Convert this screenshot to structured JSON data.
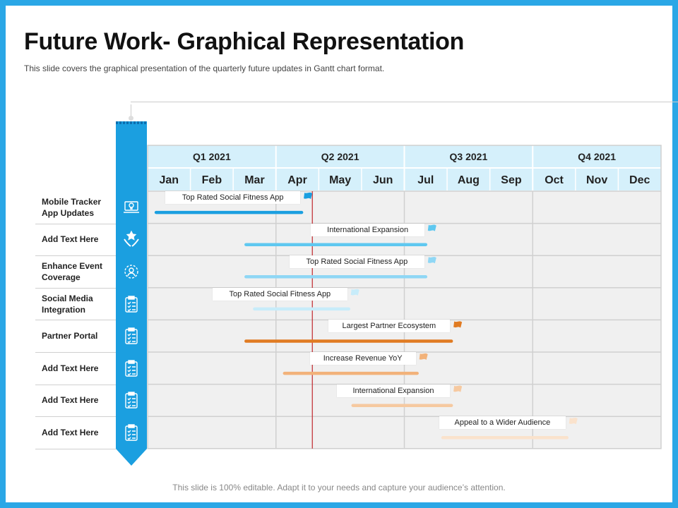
{
  "title": "Future Work- Graphical Representation",
  "subtitle": "This slide covers the graphical presentation of the quarterly future updates in Gantt chart format.",
  "footer": "This slide is 100% editable. Adapt it to your needs and capture your audience’s attention.",
  "colors": {
    "frame": "#2aa7e6",
    "strip": "#1b9fe0",
    "header_bg": "#d5f0fb",
    "grid_bg": "#f0f0f0",
    "today_line": "#c0282d"
  },
  "quarters": [
    "Q1 2021",
    "Q2 2021",
    "Q3 2021",
    "Q4 2021"
  ],
  "months": [
    "Jan",
    "Feb",
    "Mar",
    "Apr",
    "May",
    "Jun",
    "Jul",
    "Aug",
    "Sep",
    "Oct",
    "Nov",
    "Dec"
  ],
  "chart_data": {
    "type": "gantt",
    "today_marker_month": 3.85,
    "tasks": [
      {
        "row": "Mobile Tracker App Updates",
        "icon": "laptop-bulb-icon",
        "label": "Top Rated Social Fitness App",
        "start": 0.2,
        "end": 3.6,
        "color": "#1b9fe0",
        "flag_color": "#1b9fe0"
      },
      {
        "row": "Add Text Here",
        "icon": "hands-star-icon",
        "label": "International Expansion",
        "start": 2.3,
        "end": 6.5,
        "color": "#5fc8f0",
        "flag_color": "#5fc8f0"
      },
      {
        "row": "Enhance Event Coverage",
        "icon": "gear-person-icon",
        "label": "Top Rated Social Fitness App",
        "start": 2.3,
        "end": 6.5,
        "color": "#8fd7f5",
        "flag_color": "#8fd7f5"
      },
      {
        "row": "Social Media Integration",
        "icon": "clipboard-icon",
        "label": "Top Rated Social Fitness App",
        "start": 2.5,
        "end": 4.7,
        "color": "#c7ecfa",
        "flag_color": "#c7ecfa"
      },
      {
        "row": "Partner Portal",
        "icon": "clipboard-icon",
        "label": "Largest Partner Ecosystem",
        "start": 2.3,
        "end": 7.1,
        "color": "#e07b22",
        "flag_color": "#e07b22"
      },
      {
        "row": "Add Text Here",
        "icon": "clipboard-icon",
        "label": "Increase Revenue YoY",
        "start": 3.2,
        "end": 6.3,
        "color": "#f2b27a",
        "flag_color": "#f2b27a"
      },
      {
        "row": "Add Text Here",
        "icon": "clipboard-icon",
        "label": "International Expansion",
        "start": 4.8,
        "end": 7.1,
        "color": "#f6c9a0",
        "flag_color": "#f6c9a0"
      },
      {
        "row": "Add Text Here",
        "icon": "clipboard-icon",
        "label": "Appeal to a Wider Audience",
        "start": 6.9,
        "end": 9.8,
        "color": "#fae2cc",
        "flag_color": "#fae2cc"
      }
    ]
  },
  "rows": [
    {
      "label": "Mobile Tracker App Updates"
    },
    {
      "label": "Add Text Here"
    },
    {
      "label": "Enhance Event Coverage"
    },
    {
      "label": "Social Media Integration"
    },
    {
      "label": "Partner Portal"
    },
    {
      "label": "Add Text Here"
    },
    {
      "label": "Add Text Here"
    },
    {
      "label": "Add Text Here"
    }
  ]
}
